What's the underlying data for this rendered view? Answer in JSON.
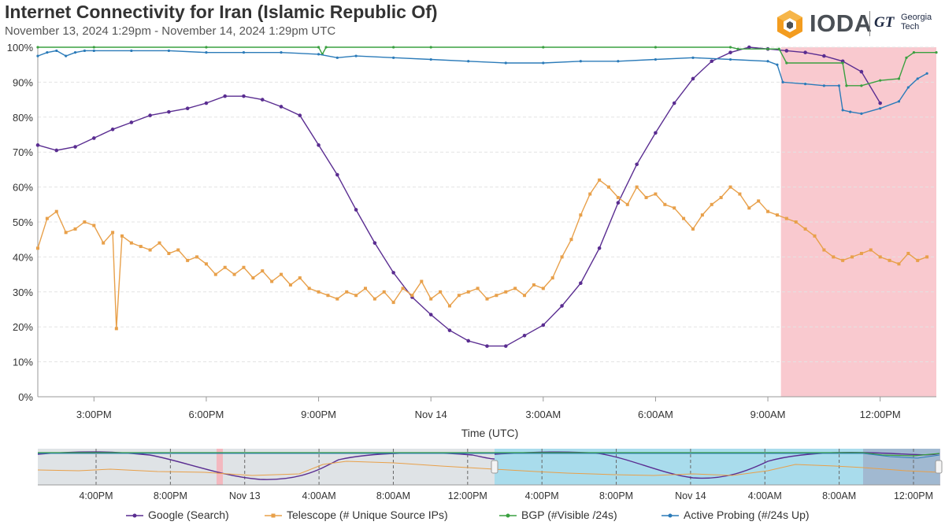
{
  "header": {
    "title": "Internet Connectivity for Iran (Islamic Republic Of)",
    "subtitle": "November 13, 2024 1:29pm - November 14, 2024 1:29pm UTC",
    "logo_text": "IODA",
    "partner_logo_mark": "GT",
    "partner_logo_text": "Georgia Tech"
  },
  "chart_data": {
    "type": "line",
    "title": "Internet Connectivity for Iran (Islamic Republic Of)",
    "xlabel": "Time (UTC)",
    "ylabel": "",
    "x_unit": "hours since 12:00 on Nov 13, 2024",
    "xlim": [
      1.5,
      25.5
    ],
    "ylim": [
      0,
      100
    ],
    "y_ticks": [
      {
        "value": 0,
        "label": "0%"
      },
      {
        "value": 10,
        "label": "10%"
      },
      {
        "value": 20,
        "label": "20%"
      },
      {
        "value": 30,
        "label": "30%"
      },
      {
        "value": 40,
        "label": "40%"
      },
      {
        "value": 50,
        "label": "50%"
      },
      {
        "value": 60,
        "label": "60%"
      },
      {
        "value": 70,
        "label": "70%"
      },
      {
        "value": 80,
        "label": "80%"
      },
      {
        "value": 90,
        "label": "90%"
      },
      {
        "value": 100,
        "label": "100%"
      }
    ],
    "x_ticks": [
      {
        "value": 3,
        "label": "3:00PM"
      },
      {
        "value": 6,
        "label": "6:00PM"
      },
      {
        "value": 9,
        "label": "9:00PM"
      },
      {
        "value": 12,
        "label": "Nov 14"
      },
      {
        "value": 15,
        "label": "3:00AM"
      },
      {
        "value": 18,
        "label": "6:00AM"
      },
      {
        "value": 21,
        "label": "9:00AM"
      },
      {
        "value": 24,
        "label": "12:00PM"
      }
    ],
    "outage_band": {
      "start": 21.35,
      "end": 25.5,
      "color": "#f9c9cf"
    },
    "series": [
      {
        "name": "Google (Search)",
        "color": "#5a2d91",
        "x": [
          1.5,
          2.0,
          2.5,
          3.0,
          3.5,
          4.0,
          4.5,
          5.0,
          5.5,
          6.0,
          6.5,
          7.0,
          7.5,
          8.0,
          8.5,
          9.0,
          9.5,
          10.0,
          10.5,
          11.0,
          11.5,
          12.0,
          12.5,
          13.0,
          13.5,
          14.0,
          14.5,
          15.0,
          15.5,
          16.0,
          16.5,
          17.0,
          17.5,
          18.0,
          18.5,
          19.0,
          19.5,
          20.0,
          20.5,
          21.0,
          21.5,
          22.0,
          22.5,
          23.0,
          23.5,
          24.0
        ],
        "values": [
          72,
          70.5,
          71.5,
          74,
          76.5,
          78.5,
          80.5,
          81.5,
          82.5,
          84,
          86,
          86,
          85,
          83,
          80.5,
          72,
          63.5,
          53.5,
          44,
          35.5,
          28.5,
          23.5,
          19,
          16,
          14.5,
          14.5,
          17.5,
          20.5,
          26,
          32.5,
          42.5,
          55.5,
          66.5,
          75.5,
          84,
          91,
          96,
          98.5,
          100,
          99.5,
          99,
          98.5,
          97.5,
          96,
          93,
          84
        ]
      },
      {
        "name": "Telescope (# Unique Source IPs)",
        "color": "#e8a04a",
        "x": [
          1.5,
          1.75,
          2.0,
          2.25,
          2.5,
          2.75,
          3.0,
          3.25,
          3.5,
          3.6,
          3.75,
          4.0,
          4.25,
          4.5,
          4.75,
          5.0,
          5.25,
          5.5,
          5.75,
          6.0,
          6.25,
          6.5,
          6.75,
          7.0,
          7.25,
          7.5,
          7.75,
          8.0,
          8.25,
          8.5,
          8.75,
          9.0,
          9.25,
          9.5,
          9.75,
          10.0,
          10.25,
          10.5,
          10.75,
          11.0,
          11.25,
          11.5,
          11.75,
          12.0,
          12.25,
          12.5,
          12.75,
          13.0,
          13.25,
          13.5,
          13.75,
          14.0,
          14.25,
          14.5,
          14.75,
          15.0,
          15.25,
          15.5,
          15.75,
          16.0,
          16.25,
          16.5,
          16.75,
          17.0,
          17.25,
          17.5,
          17.75,
          18.0,
          18.25,
          18.5,
          18.75,
          19.0,
          19.25,
          19.5,
          19.75,
          20.0,
          20.25,
          20.5,
          20.75,
          21.0,
          21.25,
          21.5,
          21.75,
          22.0,
          22.25,
          22.5,
          22.75,
          23.0,
          23.25,
          23.5,
          23.75,
          24.0,
          24.25,
          24.5,
          24.75,
          25.0,
          25.25
        ],
        "values": [
          42.5,
          51,
          53,
          47,
          48,
          50,
          49,
          44,
          47,
          19.5,
          46,
          44,
          43,
          42,
          44,
          41,
          42,
          39,
          40,
          38,
          35,
          37,
          35,
          37,
          34,
          36,
          33,
          35,
          32,
          34,
          31,
          30,
          29,
          28,
          30,
          29,
          31,
          28,
          30,
          27,
          31,
          29,
          33,
          28,
          30,
          26,
          29,
          30,
          31,
          28,
          29,
          30,
          31,
          29,
          32,
          31,
          34,
          40,
          45,
          52,
          58,
          62,
          60,
          57,
          55,
          60,
          57,
          58,
          55,
          54,
          51,
          48,
          52,
          55,
          57,
          60,
          58,
          54,
          56,
          53,
          52,
          51,
          50,
          48,
          46,
          42,
          40,
          39,
          40,
          41,
          42,
          40,
          39,
          38,
          41,
          39,
          40
        ]
      },
      {
        "name": "BGP (#Visible /24s)",
        "color": "#3aa040",
        "x": [
          1.5,
          3,
          6,
          9,
          9.1,
          9.2,
          11,
          12,
          15,
          18,
          20,
          20.2,
          21,
          21.3,
          21.5,
          23.0,
          23.1,
          23.5,
          24.0,
          24.5,
          24.7,
          24.9,
          25.5
        ],
        "values": [
          100,
          100,
          100,
          100,
          98,
          100,
          100,
          100,
          100,
          100,
          100,
          99.5,
          99.5,
          99.5,
          95.5,
          95.5,
          89,
          89,
          90.5,
          91,
          97,
          98.5,
          98.5
        ]
      },
      {
        "name": "Active Probing (#/24s Up)",
        "color": "#2b7bb9",
        "x": [
          1.5,
          1.75,
          2.0,
          2.25,
          2.5,
          2.75,
          3.0,
          4.0,
          5.0,
          6.0,
          7.0,
          8.0,
          9.0,
          9.5,
          10.0,
          11.0,
          12.0,
          13.0,
          14.0,
          15.0,
          16.0,
          17.0,
          18.0,
          19.0,
          20.0,
          21.0,
          21.25,
          21.4,
          22.0,
          22.5,
          22.9,
          23.0,
          23.2,
          23.5,
          24.0,
          24.5,
          24.75,
          25.0,
          25.25
        ],
        "values": [
          97.5,
          98.5,
          99,
          97.5,
          98.5,
          99,
          99,
          99,
          99,
          98.5,
          98.5,
          98.5,
          98,
          97,
          97.5,
          97,
          96.5,
          96,
          95.5,
          95.5,
          96,
          96,
          96.5,
          97,
          96.5,
          96,
          95,
          90,
          89.5,
          89,
          89,
          82,
          81.5,
          81,
          82.5,
          84.5,
          88.5,
          91,
          92.5
        ]
      }
    ],
    "navigator": {
      "x_ticks": [
        {
          "label": "4:00PM"
        },
        {
          "label": "8:00PM"
        },
        {
          "label": "Nov 13"
        },
        {
          "label": "4:00AM"
        },
        {
          "label": "8:00AM"
        },
        {
          "label": "12:00PM"
        },
        {
          "label": "4:00PM"
        },
        {
          "label": "8:00PM"
        },
        {
          "label": "Nov 14"
        },
        {
          "label": "4:00AM"
        },
        {
          "label": "8:00AM"
        },
        {
          "label": "12:00PM"
        }
      ]
    }
  }
}
